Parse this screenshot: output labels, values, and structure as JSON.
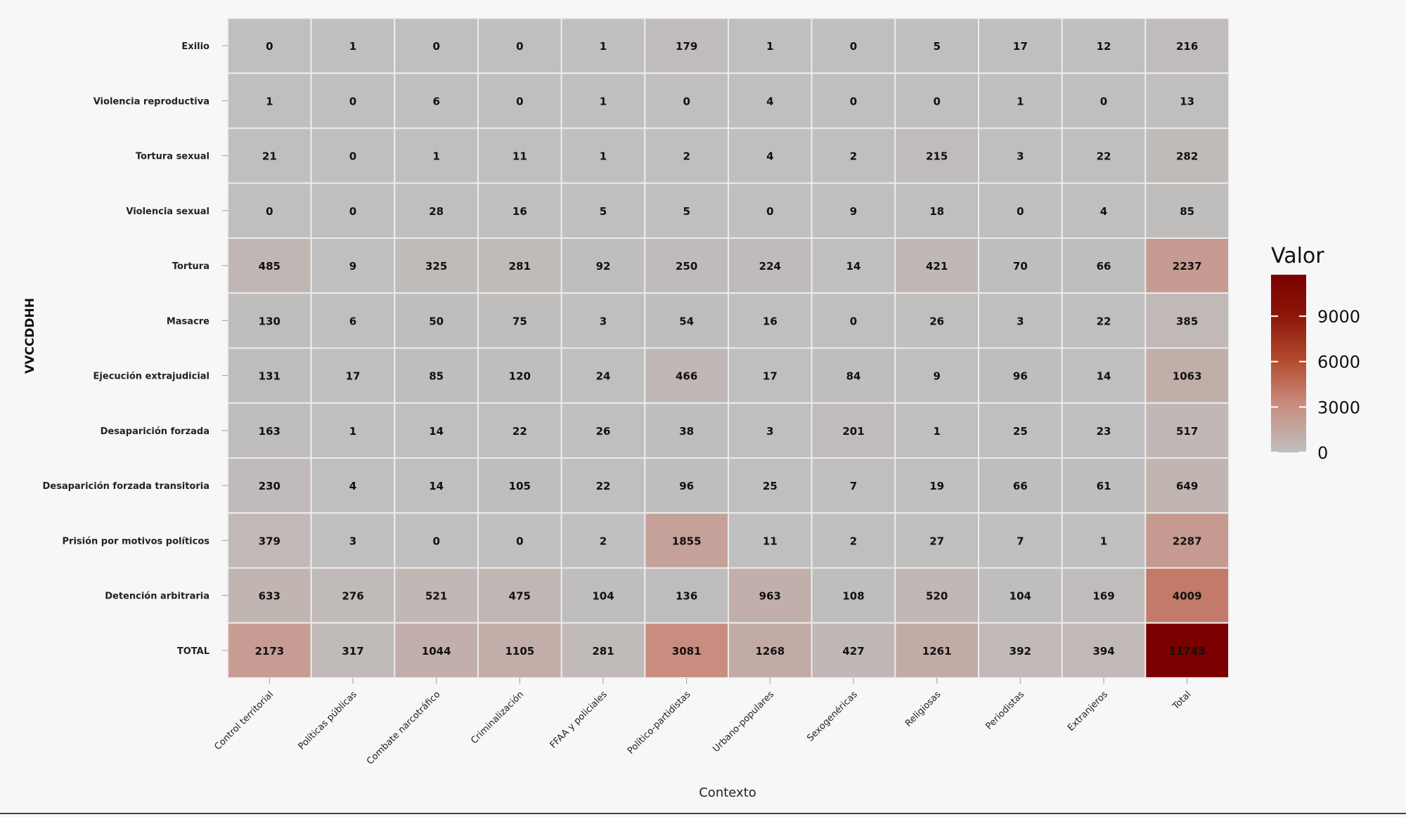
{
  "chart_data": {
    "type": "heatmap",
    "title": "",
    "xlabel": "Contexto",
    "ylabel": "VVCCDDHH",
    "x": [
      "Control territorial",
      "Políticas públicas",
      "Combate narcotráfico",
      "Criminalización",
      "FFAA y policiales",
      "Político-partidistas",
      "Urbano-populares",
      "Sexogenéricas",
      "Religiosas",
      "Periodistas",
      "Extranjeros",
      "Total"
    ],
    "y": [
      "Exilio",
      "Violencia reproductiva",
      "Tortura sexual",
      "Violencia sexual",
      "Tortura",
      "Masacre",
      "Ejecución extrajudicial",
      "Desaparición forzada",
      "Desaparición forzada transitoria",
      "Prisión por motivos políticos",
      "Detención arbitraria",
      "TOTAL"
    ],
    "values": [
      [
        0,
        1,
        0,
        0,
        1,
        179,
        1,
        0,
        5,
        17,
        12,
        216
      ],
      [
        1,
        0,
        6,
        0,
        1,
        0,
        4,
        0,
        0,
        1,
        0,
        13
      ],
      [
        21,
        0,
        1,
        11,
        1,
        2,
        4,
        2,
        215,
        3,
        22,
        282
      ],
      [
        0,
        0,
        28,
        16,
        5,
        5,
        0,
        9,
        18,
        0,
        4,
        85
      ],
      [
        485,
        9,
        325,
        281,
        92,
        250,
        224,
        14,
        421,
        70,
        66,
        2237
      ],
      [
        130,
        6,
        50,
        75,
        3,
        54,
        16,
        0,
        26,
        3,
        22,
        385
      ],
      [
        131,
        17,
        85,
        120,
        24,
        466,
        17,
        84,
        9,
        96,
        14,
        1063
      ],
      [
        163,
        1,
        14,
        22,
        26,
        38,
        3,
        201,
        1,
        25,
        23,
        517
      ],
      [
        230,
        4,
        14,
        105,
        22,
        96,
        25,
        7,
        19,
        66,
        61,
        649
      ],
      [
        379,
        3,
        0,
        0,
        2,
        1855,
        11,
        2,
        27,
        7,
        1,
        2287
      ],
      [
        633,
        276,
        521,
        475,
        104,
        136,
        963,
        108,
        520,
        104,
        169,
        4009
      ],
      [
        2173,
        317,
        1044,
        1105,
        281,
        3081,
        1268,
        427,
        1261,
        392,
        394,
        11743
      ]
    ],
    "legend": {
      "title": "Valor",
      "position": "right",
      "ticks": [
        0,
        3000,
        6000,
        9000
      ],
      "range": [
        0,
        11743
      ],
      "colors": [
        "#bfbfbf",
        "#c98a7c",
        "#b24a2e",
        "#8a1508",
        "#7a0000"
      ]
    },
    "grid": true
  }
}
